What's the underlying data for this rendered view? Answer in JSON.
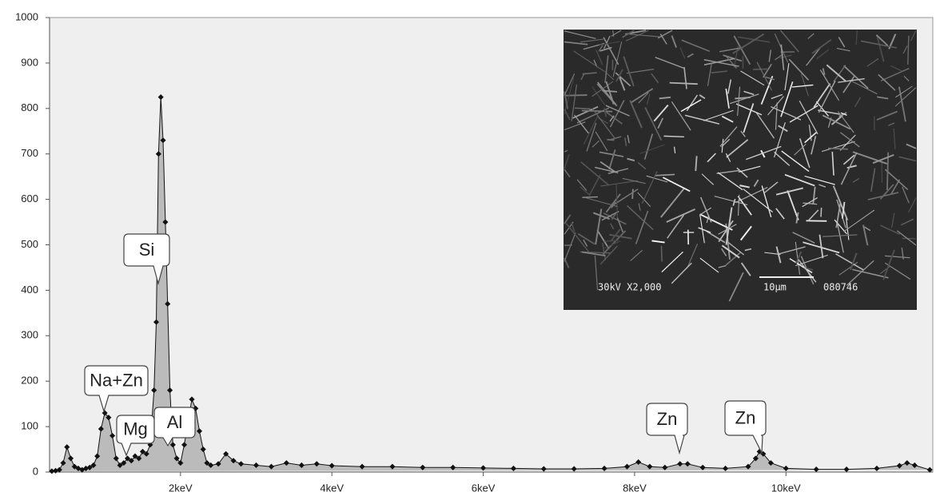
{
  "chart_data": {
    "type": "area",
    "x": [
      0.3,
      0.35,
      0.4,
      0.45,
      0.5,
      0.55,
      0.6,
      0.65,
      0.7,
      0.75,
      0.8,
      0.85,
      0.9,
      0.95,
      1.0,
      1.05,
      1.1,
      1.15,
      1.2,
      1.25,
      1.3,
      1.35,
      1.4,
      1.45,
      1.5,
      1.55,
      1.6,
      1.65,
      1.68,
      1.71,
      1.74,
      1.77,
      1.8,
      1.83,
      1.86,
      1.9,
      1.95,
      2.0,
      2.05,
      2.1,
      2.15,
      2.2,
      2.25,
      2.3,
      2.35,
      2.4,
      2.5,
      2.6,
      2.7,
      2.8,
      3.0,
      3.2,
      3.4,
      3.6,
      3.8,
      4.0,
      4.4,
      4.8,
      5.2,
      5.6,
      6.0,
      6.4,
      6.8,
      7.2,
      7.6,
      7.9,
      8.05,
      8.2,
      8.4,
      8.6,
      8.7,
      8.9,
      9.2,
      9.5,
      9.6,
      9.65,
      9.7,
      9.8,
      10.0,
      10.4,
      10.8,
      11.2,
      11.5,
      11.6,
      11.7,
      11.9
    ],
    "values": [
      2,
      3,
      5,
      20,
      55,
      30,
      12,
      8,
      5,
      8,
      10,
      15,
      35,
      95,
      130,
      120,
      80,
      30,
      15,
      20,
      30,
      25,
      35,
      30,
      45,
      40,
      60,
      180,
      330,
      700,
      825,
      730,
      550,
      370,
      180,
      60,
      30,
      20,
      60,
      110,
      160,
      140,
      90,
      50,
      20,
      15,
      18,
      40,
      25,
      18,
      15,
      12,
      20,
      15,
      18,
      14,
      12,
      12,
      10,
      10,
      9,
      8,
      7,
      7,
      8,
      12,
      22,
      12,
      10,
      18,
      18,
      10,
      8,
      12,
      30,
      45,
      40,
      20,
      8,
      6,
      6,
      8,
      14,
      20,
      15,
      5
    ],
    "color": "#bbbbbb",
    "xlim": [
      0.27,
      11.94
    ],
    "xticks": [
      {
        "value": 2,
        "label": "2keV"
      },
      {
        "value": 4,
        "label": "4keV"
      },
      {
        "value": 6,
        "label": "6keV"
      },
      {
        "value": 8,
        "label": "8keV"
      },
      {
        "value": 10,
        "label": "10keV"
      }
    ],
    "ylim": [
      0,
      1000
    ],
    "yticks": [
      0,
      100,
      200,
      300,
      400,
      500,
      600,
      700,
      800,
      900,
      1000
    ],
    "annotations": [
      "Si",
      "Na+Zn",
      "Mg",
      "Al",
      "Zn",
      "Zn"
    ],
    "inset_text": [
      "30kV X2,000",
      "10µm",
      "080746"
    ]
  }
}
